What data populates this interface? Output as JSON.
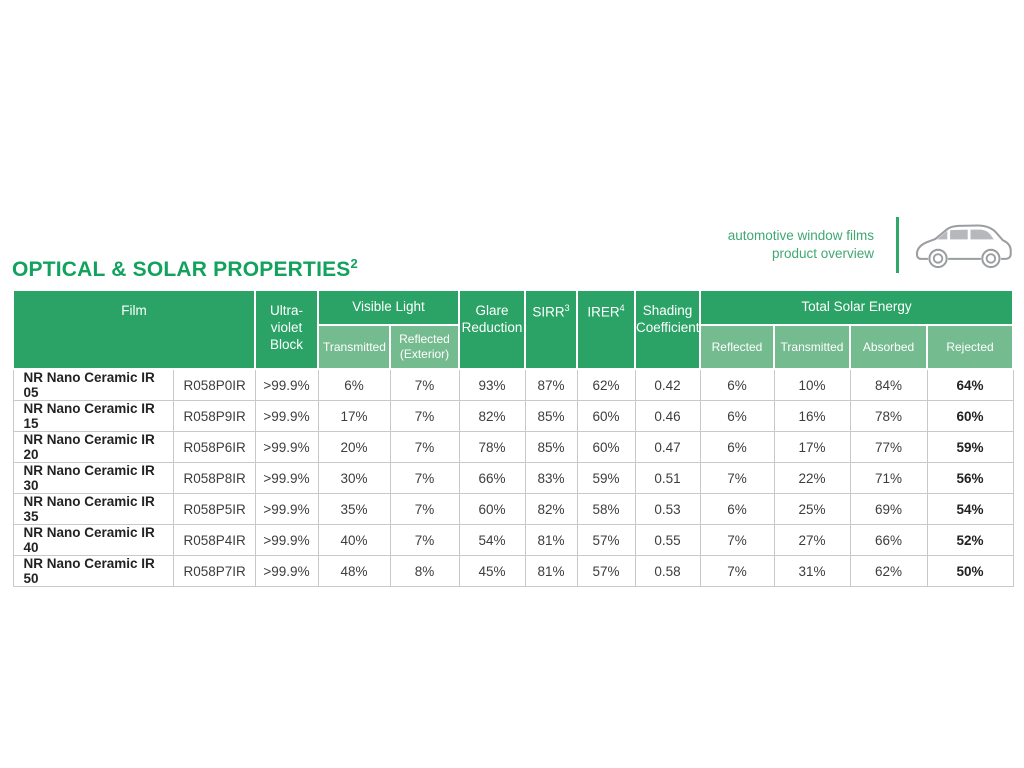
{
  "page": {
    "title_text": "OPTICAL & SOLAR PROPERTIES",
    "title_sup": "2",
    "brand": {
      "line1": "automotive window films",
      "line2": "product overview"
    },
    "colors": {
      "header_green": "#2ba367",
      "subheader_green": "#74bb8f",
      "title_green": "#13a25d",
      "divider_green": "#2fa968",
      "body_border_gray": "#c9c9c9",
      "car_outline_gray": "#9b9ea0",
      "car_window_gray": "#b6b9bb"
    }
  },
  "table": {
    "headers": {
      "film": "Film",
      "uv_block": "Ultra-violet Block",
      "visible_light": "Visible Light",
      "vl_transmitted": "Transmitted",
      "vl_reflected": "Reflected (Exterior)",
      "glare_reduction": "Glare Reduction",
      "sirr_label": "SIRR",
      "sirr_sup": "3",
      "irer_label": "IRER",
      "irer_sup": "4",
      "shading_coefficient": "Shading Coefficient",
      "total_solar_energy": "Total Solar Energy",
      "tse_reflected": "Reflected",
      "tse_transmitted": "Transmitted",
      "tse_absorbed": "Absorbed",
      "tse_rejected": "Rejected"
    },
    "columns": [
      {
        "key": "film",
        "cls": "cell-film",
        "name": "cell-film-name"
      },
      {
        "key": "code",
        "cls": "cell-code",
        "name": "cell-film-code"
      },
      {
        "key": "uv",
        "cls": "",
        "name": "cell-uv-block"
      },
      {
        "key": "vlt",
        "cls": "",
        "name": "cell-visible-light-transmitted"
      },
      {
        "key": "vlr",
        "cls": "",
        "name": "cell-visible-light-reflected"
      },
      {
        "key": "glare",
        "cls": "",
        "name": "cell-glare-reduction"
      },
      {
        "key": "sirr",
        "cls": "",
        "name": "cell-sirr"
      },
      {
        "key": "irer",
        "cls": "",
        "name": "cell-irer"
      },
      {
        "key": "sc",
        "cls": "",
        "name": "cell-shading-coefficient"
      },
      {
        "key": "ref",
        "cls": "",
        "name": "cell-tse-reflected"
      },
      {
        "key": "tra",
        "cls": "",
        "name": "cell-tse-transmitted"
      },
      {
        "key": "abs",
        "cls": "",
        "name": "cell-tse-absorbed"
      },
      {
        "key": "rej",
        "cls": "cell-rej",
        "name": "cell-tse-rejected"
      }
    ],
    "rows": [
      {
        "film": "NR Nano Ceramic IR 05",
        "code": "R058P0IR",
        "uv": ">99.9%",
        "vlt": "6%",
        "vlr": "7%",
        "glare": "93%",
        "sirr": "87%",
        "irer": "62%",
        "sc": "0.42",
        "ref": "6%",
        "tra": "10%",
        "abs": "84%",
        "rej": "64%"
      },
      {
        "film": "NR Nano Ceramic IR 15",
        "code": "R058P9IR",
        "uv": ">99.9%",
        "vlt": "17%",
        "vlr": "7%",
        "glare": "82%",
        "sirr": "85%",
        "irer": "60%",
        "sc": "0.46",
        "ref": "6%",
        "tra": "16%",
        "abs": "78%",
        "rej": "60%"
      },
      {
        "film": "NR Nano Ceramic IR 20",
        "code": "R058P6IR",
        "uv": ">99.9%",
        "vlt": "20%",
        "vlr": "7%",
        "glare": "78%",
        "sirr": "85%",
        "irer": "60%",
        "sc": "0.47",
        "ref": "6%",
        "tra": "17%",
        "abs": "77%",
        "rej": "59%"
      },
      {
        "film": "NR Nano Ceramic IR 30",
        "code": "R058P8IR",
        "uv": ">99.9%",
        "vlt": "30%",
        "vlr": "7%",
        "glare": "66%",
        "sirr": "83%",
        "irer": "59%",
        "sc": "0.51",
        "ref": "7%",
        "tra": "22%",
        "abs": "71%",
        "rej": "56%"
      },
      {
        "film": "NR Nano Ceramic IR 35",
        "code": "R058P5IR",
        "uv": ">99.9%",
        "vlt": "35%",
        "vlr": "7%",
        "glare": "60%",
        "sirr": "82%",
        "irer": "58%",
        "sc": "0.53",
        "ref": "6%",
        "tra": "25%",
        "abs": "69%",
        "rej": "54%"
      },
      {
        "film": "NR Nano Ceramic IR 40",
        "code": "R058P4IR",
        "uv": ">99.9%",
        "vlt": "40%",
        "vlr": "7%",
        "glare": "54%",
        "sirr": "81%",
        "irer": "57%",
        "sc": "0.55",
        "ref": "7%",
        "tra": "27%",
        "abs": "66%",
        "rej": "52%"
      },
      {
        "film": "NR Nano Ceramic IR 50",
        "code": "R058P7IR",
        "uv": ">99.9%",
        "vlt": "48%",
        "vlr": "8%",
        "glare": "45%",
        "sirr": "81%",
        "irer": "57%",
        "sc": "0.58",
        "ref": "7%",
        "tra": "31%",
        "abs": "62%",
        "rej": "50%"
      }
    ]
  }
}
